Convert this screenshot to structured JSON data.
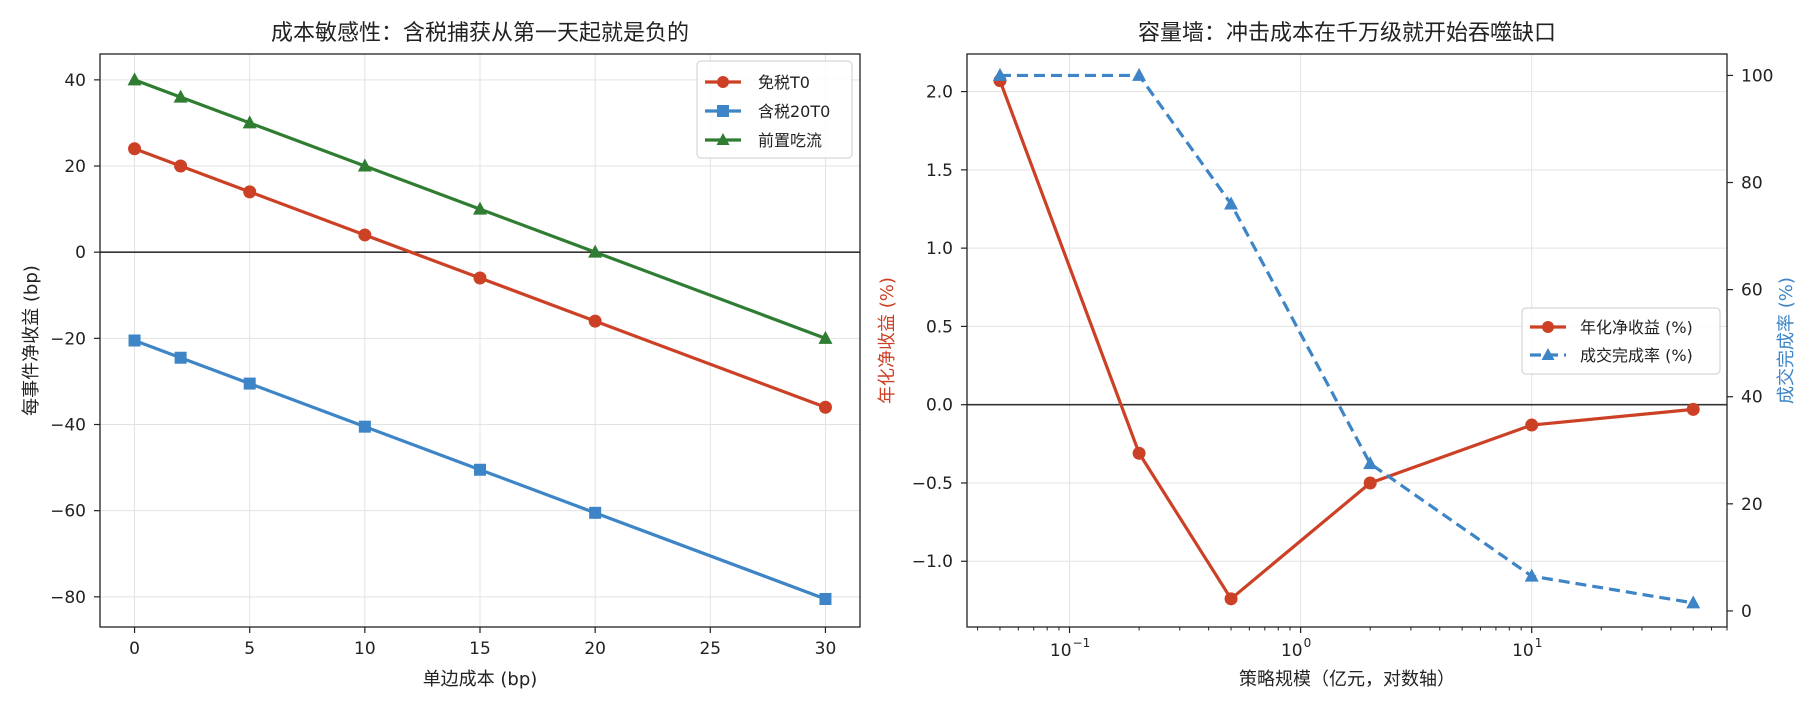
{
  "chart_data": [
    {
      "type": "line",
      "title": "成本敏感性：含税捕获从第一天起就是负的",
      "xlabel": "单边成本 (bp)",
      "ylabel": "每事件净收益 (bp)",
      "x": [
        0,
        2,
        5,
        10,
        15,
        20,
        30
      ],
      "xlim": [
        -1.5,
        31.5
      ],
      "ylim": [
        -87,
        46
      ],
      "xticks": [
        0,
        5,
        10,
        15,
        20,
        25,
        30
      ],
      "yticks": [
        -80,
        -60,
        -40,
        -20,
        0,
        20,
        40
      ],
      "ytick_labels": [
        "−80",
        "−60",
        "−40",
        "−20",
        "0",
        "20",
        "40"
      ],
      "series": [
        {
          "name": "免税T0",
          "color": "#cc4125",
          "marker": "circle",
          "values": [
            24,
            20,
            14,
            4,
            -6,
            -16,
            -36
          ]
        },
        {
          "name": "含税20T0",
          "color": "#3d85c6",
          "marker": "square",
          "values": [
            -20.5,
            -24.5,
            -30.5,
            -40.5,
            -50.5,
            -60.5,
            -80.5
          ]
        },
        {
          "name": "前置吃流",
          "color": "#2e7d32",
          "marker": "triangle",
          "values": [
            40,
            36,
            30,
            20,
            10,
            0,
            -20
          ]
        }
      ],
      "hline": 0,
      "grid": true,
      "legend": "top-right"
    },
    {
      "type": "line",
      "title": "容量墙：冲击成本在千万级就开始吞噬缺口",
      "xlabel": "策略规模（亿元，对数轴）",
      "ylabel_left": "年化净收益 (%)",
      "ylabel_right": "成交完成率 (%)",
      "xscale": "log",
      "x": [
        0.05,
        0.2,
        0.5,
        2,
        10,
        50
      ],
      "xlim": [
        0.036,
        70
      ],
      "ylim_left": [
        -1.42,
        2.24
      ],
      "ylim_right": [
        -3,
        104
      ],
      "xtick_labels": [
        {
          "base": "10",
          "exp": "−1",
          "value": 0.1
        },
        {
          "base": "10",
          "exp": "0",
          "value": 1
        },
        {
          "base": "10",
          "exp": "1",
          "value": 10
        }
      ],
      "yticks_left": [
        -1.0,
        -0.5,
        0.0,
        0.5,
        1.0,
        1.5,
        2.0
      ],
      "ytick_labels_left": [
        "−1.0",
        "−0.5",
        "0.0",
        "0.5",
        "1.0",
        "1.5",
        "2.0"
      ],
      "yticks_right": [
        0,
        20,
        40,
        60,
        80,
        100
      ],
      "series": [
        {
          "name": "年化净收益 (%)",
          "axis": "left",
          "color": "#cc4125",
          "marker": "circle",
          "dashed": false,
          "values": [
            2.07,
            -0.31,
            -1.24,
            -0.5,
            -0.13,
            -0.03
          ]
        },
        {
          "name": "成交完成率 (%)",
          "axis": "right",
          "color": "#3d85c6",
          "marker": "triangle",
          "dashed": true,
          "values": [
            100,
            100,
            76,
            27.5,
            6.5,
            1.5
          ]
        }
      ],
      "hline": 0,
      "grid": true,
      "legend": "center-right"
    }
  ]
}
